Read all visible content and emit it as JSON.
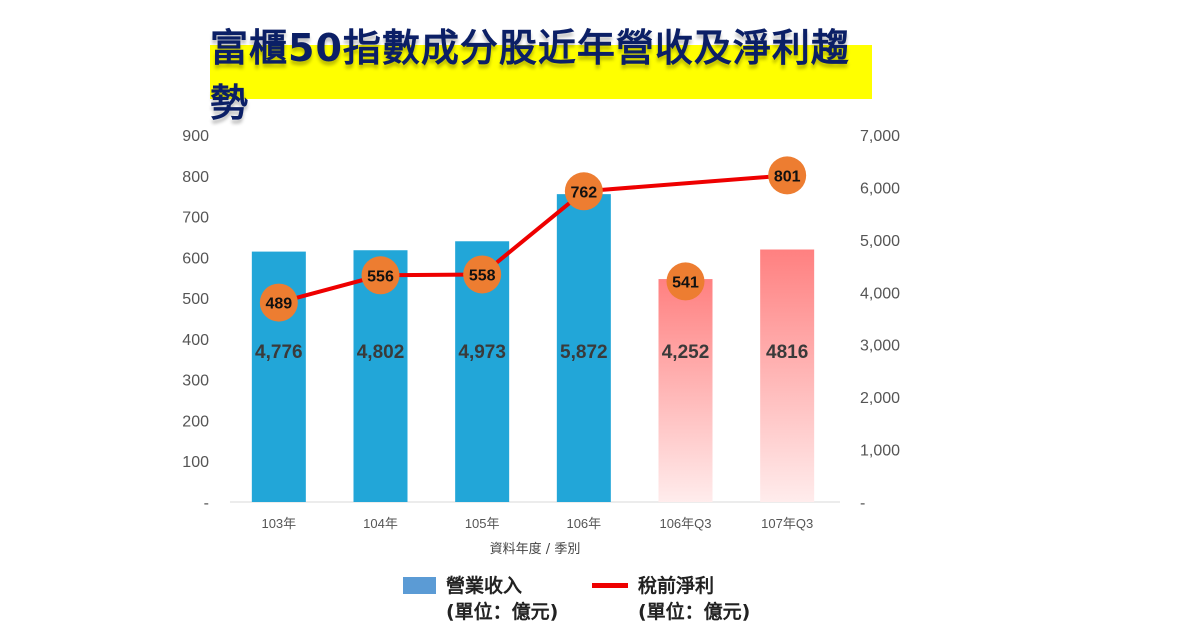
{
  "chart_data": {
    "type": "bar+line",
    "title": "富櫃50指數成分股近年營收及淨利趨勢",
    "xlabel": "資料年度 / 季別",
    "categories": [
      "103年",
      "104年",
      "105年",
      "106年",
      "106年Q3",
      "107年Q3"
    ],
    "left_axis": {
      "range": [
        0,
        900
      ],
      "ticks": [
        "-",
        "100",
        "200",
        "300",
        "400",
        "500",
        "600",
        "700",
        "800",
        "900"
      ]
    },
    "right_axis": {
      "range": [
        0,
        7000
      ],
      "ticks": [
        "-",
        "1,000",
        "2,000",
        "3,000",
        "4,000",
        "5,000",
        "6,000",
        "7,000"
      ]
    },
    "series": [
      {
        "name": "營業收入",
        "unit": "(單位：億元)",
        "type": "bar",
        "axis": "right",
        "values": [
          4776,
          4802,
          4973,
          5872,
          4252,
          4816
        ],
        "labels": [
          "4,776",
          "4,802",
          "4,973",
          "5,872",
          "4,252",
          "4816"
        ],
        "colors": [
          "#22a6d8",
          "#22a6d8",
          "#22a6d8",
          "#22a6d8",
          "#ff8080",
          "#ff8080"
        ]
      },
      {
        "name": "稅前淨利",
        "unit": "(單位：億元)",
        "type": "line",
        "axis": "left",
        "values": [
          489,
          556,
          558,
          762,
          541,
          801
        ],
        "labels": [
          "489",
          "556",
          "558",
          "762",
          "541",
          "801"
        ],
        "connected": [
          true,
          true,
          true,
          true,
          false,
          true
        ],
        "line_color": "#ee0000",
        "marker_color": "#ed7d31"
      }
    ],
    "legend_position": "bottom",
    "grid": false
  },
  "legend": {
    "bar_swatch_color": "#5b9bd5"
  }
}
